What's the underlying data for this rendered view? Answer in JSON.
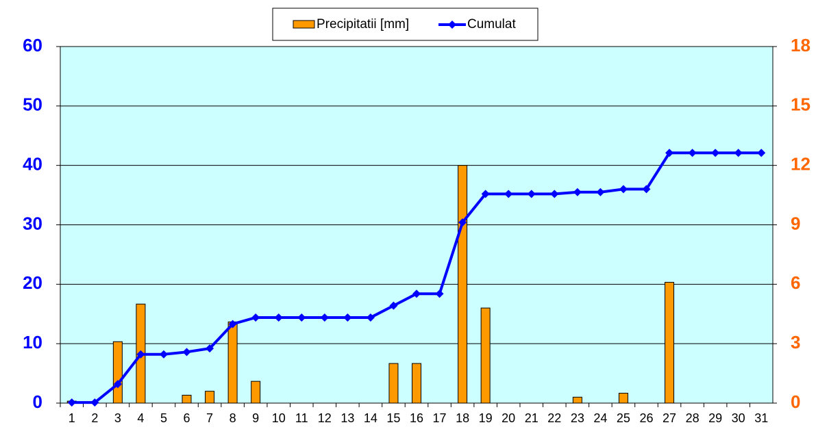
{
  "chart_data": {
    "type": "bar-line",
    "categories": [
      "1",
      "2",
      "3",
      "4",
      "5",
      "6",
      "7",
      "8",
      "9",
      "10",
      "11",
      "12",
      "13",
      "14",
      "15",
      "16",
      "17",
      "18",
      "19",
      "20",
      "21",
      "22",
      "23",
      "24",
      "25",
      "26",
      "27",
      "28",
      "29",
      "30",
      "31"
    ],
    "series": [
      {
        "name": "Precipitatii [mm]",
        "type": "bar",
        "axis": "y2",
        "color": "#ff9900",
        "values": [
          0.1,
          0,
          3.1,
          5.0,
          0,
          0.4,
          0.6,
          4.1,
          1.1,
          0,
          0,
          0,
          0,
          0,
          2.0,
          2.0,
          0,
          12.0,
          4.8,
          0,
          0,
          0,
          0.3,
          0,
          0.5,
          0,
          6.1,
          0,
          0,
          0,
          0
        ]
      },
      {
        "name": "Cumulat",
        "type": "line",
        "color": "#0000ff",
        "values": [
          0.1,
          0.1,
          3.2,
          8.2,
          8.2,
          8.6,
          9.2,
          13.3,
          14.4,
          14.4,
          14.4,
          14.4,
          14.4,
          14.4,
          16.4,
          18.4,
          18.4,
          30.4,
          35.2,
          35.2,
          35.2,
          35.2,
          35.5,
          35.5,
          36.0,
          36.0,
          42.1,
          42.1,
          42.1,
          42.1,
          42.1
        ]
      }
    ],
    "ylim": [
      0,
      60
    ],
    "yticks": [
      0,
      10,
      20,
      30,
      40,
      50,
      60
    ],
    "ycolor": "#0000ff",
    "y2lim": [
      0,
      18
    ],
    "y2ticks": [
      0,
      3,
      6,
      9,
      12,
      15,
      18
    ],
    "y2color": "#ff6600",
    "plot_background": "#ccffff",
    "grid": true,
    "legend": "top"
  }
}
